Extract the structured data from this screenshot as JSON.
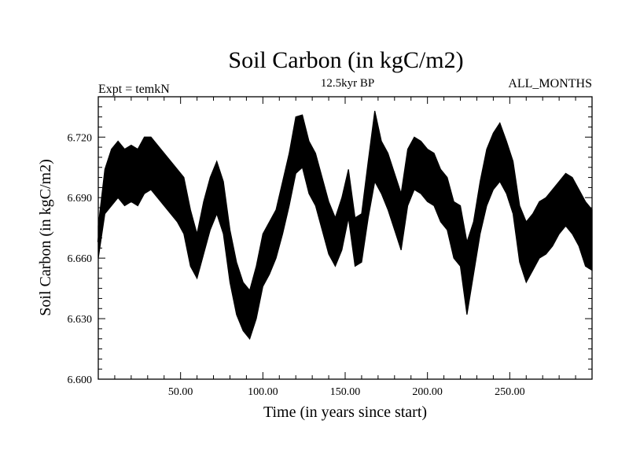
{
  "chart_data": {
    "type": "line",
    "title": "Soil Carbon (in kgC/m2)",
    "subtitle": "12.5kyr BP",
    "left_label": "Expt = temkN",
    "right_label": "ALL_MONTHS",
    "xlabel": "Time (in years since start)",
    "ylabel": "Soil Carbon (in kgC/m2)",
    "xlim": [
      0,
      300
    ],
    "ylim": [
      6.6,
      6.74
    ],
    "x_ticks": [
      {
        "value": 50,
        "label": "50.00"
      },
      {
        "value": 100,
        "label": "100.00"
      },
      {
        "value": 150,
        "label": "150.00"
      },
      {
        "value": 200,
        "label": "200.00"
      },
      {
        "value": 250,
        "label": "250.00"
      }
    ],
    "y_ticks": [
      {
        "value": 6.6,
        "label": "6.600"
      },
      {
        "value": 6.63,
        "label": "6.630"
      },
      {
        "value": 6.66,
        "label": "6.660"
      },
      {
        "value": 6.69,
        "label": "6.690"
      },
      {
        "value": 6.72,
        "label": "6.720"
      }
    ],
    "series": [
      {
        "name": "Soil Carbon",
        "color": "#000000",
        "x": [
          0,
          4,
          8,
          12,
          16,
          20,
          24,
          28,
          32,
          36,
          40,
          44,
          48,
          52,
          56,
          60,
          64,
          68,
          72,
          76,
          80,
          84,
          88,
          92,
          96,
          100,
          104,
          108,
          112,
          116,
          120,
          124,
          128,
          132,
          136,
          140,
          144,
          148,
          152,
          156,
          160,
          164,
          168,
          172,
          176,
          180,
          184,
          188,
          192,
          196,
          200,
          204,
          208,
          212,
          216,
          220,
          224,
          228,
          232,
          236,
          240,
          244,
          248,
          252,
          256,
          260,
          264,
          268,
          272,
          276,
          280,
          284,
          288,
          292,
          296,
          300
        ],
        "mean": [
          6.668,
          6.695,
          6.7,
          6.704,
          6.7,
          6.703,
          6.701,
          6.706,
          6.708,
          6.703,
          6.7,
          6.696,
          6.692,
          6.688,
          6.67,
          6.658,
          6.675,
          6.688,
          6.695,
          6.685,
          6.662,
          6.645,
          6.635,
          6.63,
          6.643,
          6.66,
          6.665,
          6.672,
          6.685,
          6.7,
          6.715,
          6.718,
          6.705,
          6.7,
          6.688,
          6.675,
          6.667,
          6.678,
          6.692,
          6.668,
          6.67,
          6.695,
          6.712,
          6.705,
          6.698,
          6.688,
          6.678,
          6.7,
          6.708,
          6.705,
          6.702,
          6.7,
          6.692,
          6.688,
          6.675,
          6.672,
          6.65,
          6.665,
          6.685,
          6.7,
          6.708,
          6.712,
          6.705,
          6.695,
          6.672,
          6.663,
          6.668,
          6.674,
          6.676,
          6.68,
          6.685,
          6.69,
          6.686,
          6.68,
          6.672,
          6.67
        ],
        "band_low": [
          6.66,
          6.682,
          6.686,
          6.69,
          6.686,
          6.688,
          6.686,
          6.692,
          6.694,
          6.69,
          6.686,
          6.682,
          6.678,
          6.672,
          6.656,
          6.65,
          6.662,
          6.674,
          6.682,
          6.672,
          6.648,
          6.632,
          6.624,
          6.62,
          6.63,
          6.646,
          6.652,
          6.66,
          6.672,
          6.686,
          6.702,
          6.705,
          6.692,
          6.686,
          6.674,
          6.662,
          6.656,
          6.664,
          6.68,
          6.656,
          6.658,
          6.68,
          6.698,
          6.692,
          6.684,
          6.674,
          6.664,
          6.686,
          6.694,
          6.692,
          6.688,
          6.686,
          6.678,
          6.674,
          6.66,
          6.656,
          6.632,
          6.652,
          6.672,
          6.686,
          6.694,
          6.698,
          6.692,
          6.682,
          6.658,
          6.648,
          6.654,
          6.66,
          6.662,
          6.666,
          6.672,
          6.676,
          6.672,
          6.666,
          6.656,
          6.654
        ],
        "band_high": [
          6.676,
          6.704,
          6.714,
          6.718,
          6.714,
          6.716,
          6.714,
          6.72,
          6.72,
          6.716,
          6.712,
          6.708,
          6.704,
          6.7,
          6.684,
          6.672,
          6.688,
          6.7,
          6.708,
          6.698,
          6.674,
          6.658,
          6.648,
          6.644,
          6.656,
          6.672,
          6.678,
          6.684,
          6.698,
          6.712,
          6.73,
          6.731,
          6.718,
          6.712,
          6.7,
          6.688,
          6.68,
          6.69,
          6.704,
          6.68,
          6.682,
          6.708,
          6.733,
          6.718,
          6.712,
          6.702,
          6.692,
          6.714,
          6.72,
          6.718,
          6.714,
          6.712,
          6.704,
          6.7,
          6.688,
          6.686,
          6.668,
          6.678,
          6.698,
          6.714,
          6.722,
          6.727,
          6.718,
          6.708,
          6.686,
          6.678,
          6.682,
          6.688,
          6.69,
          6.694,
          6.698,
          6.702,
          6.7,
          6.694,
          6.688,
          6.684
        ]
      }
    ]
  }
}
